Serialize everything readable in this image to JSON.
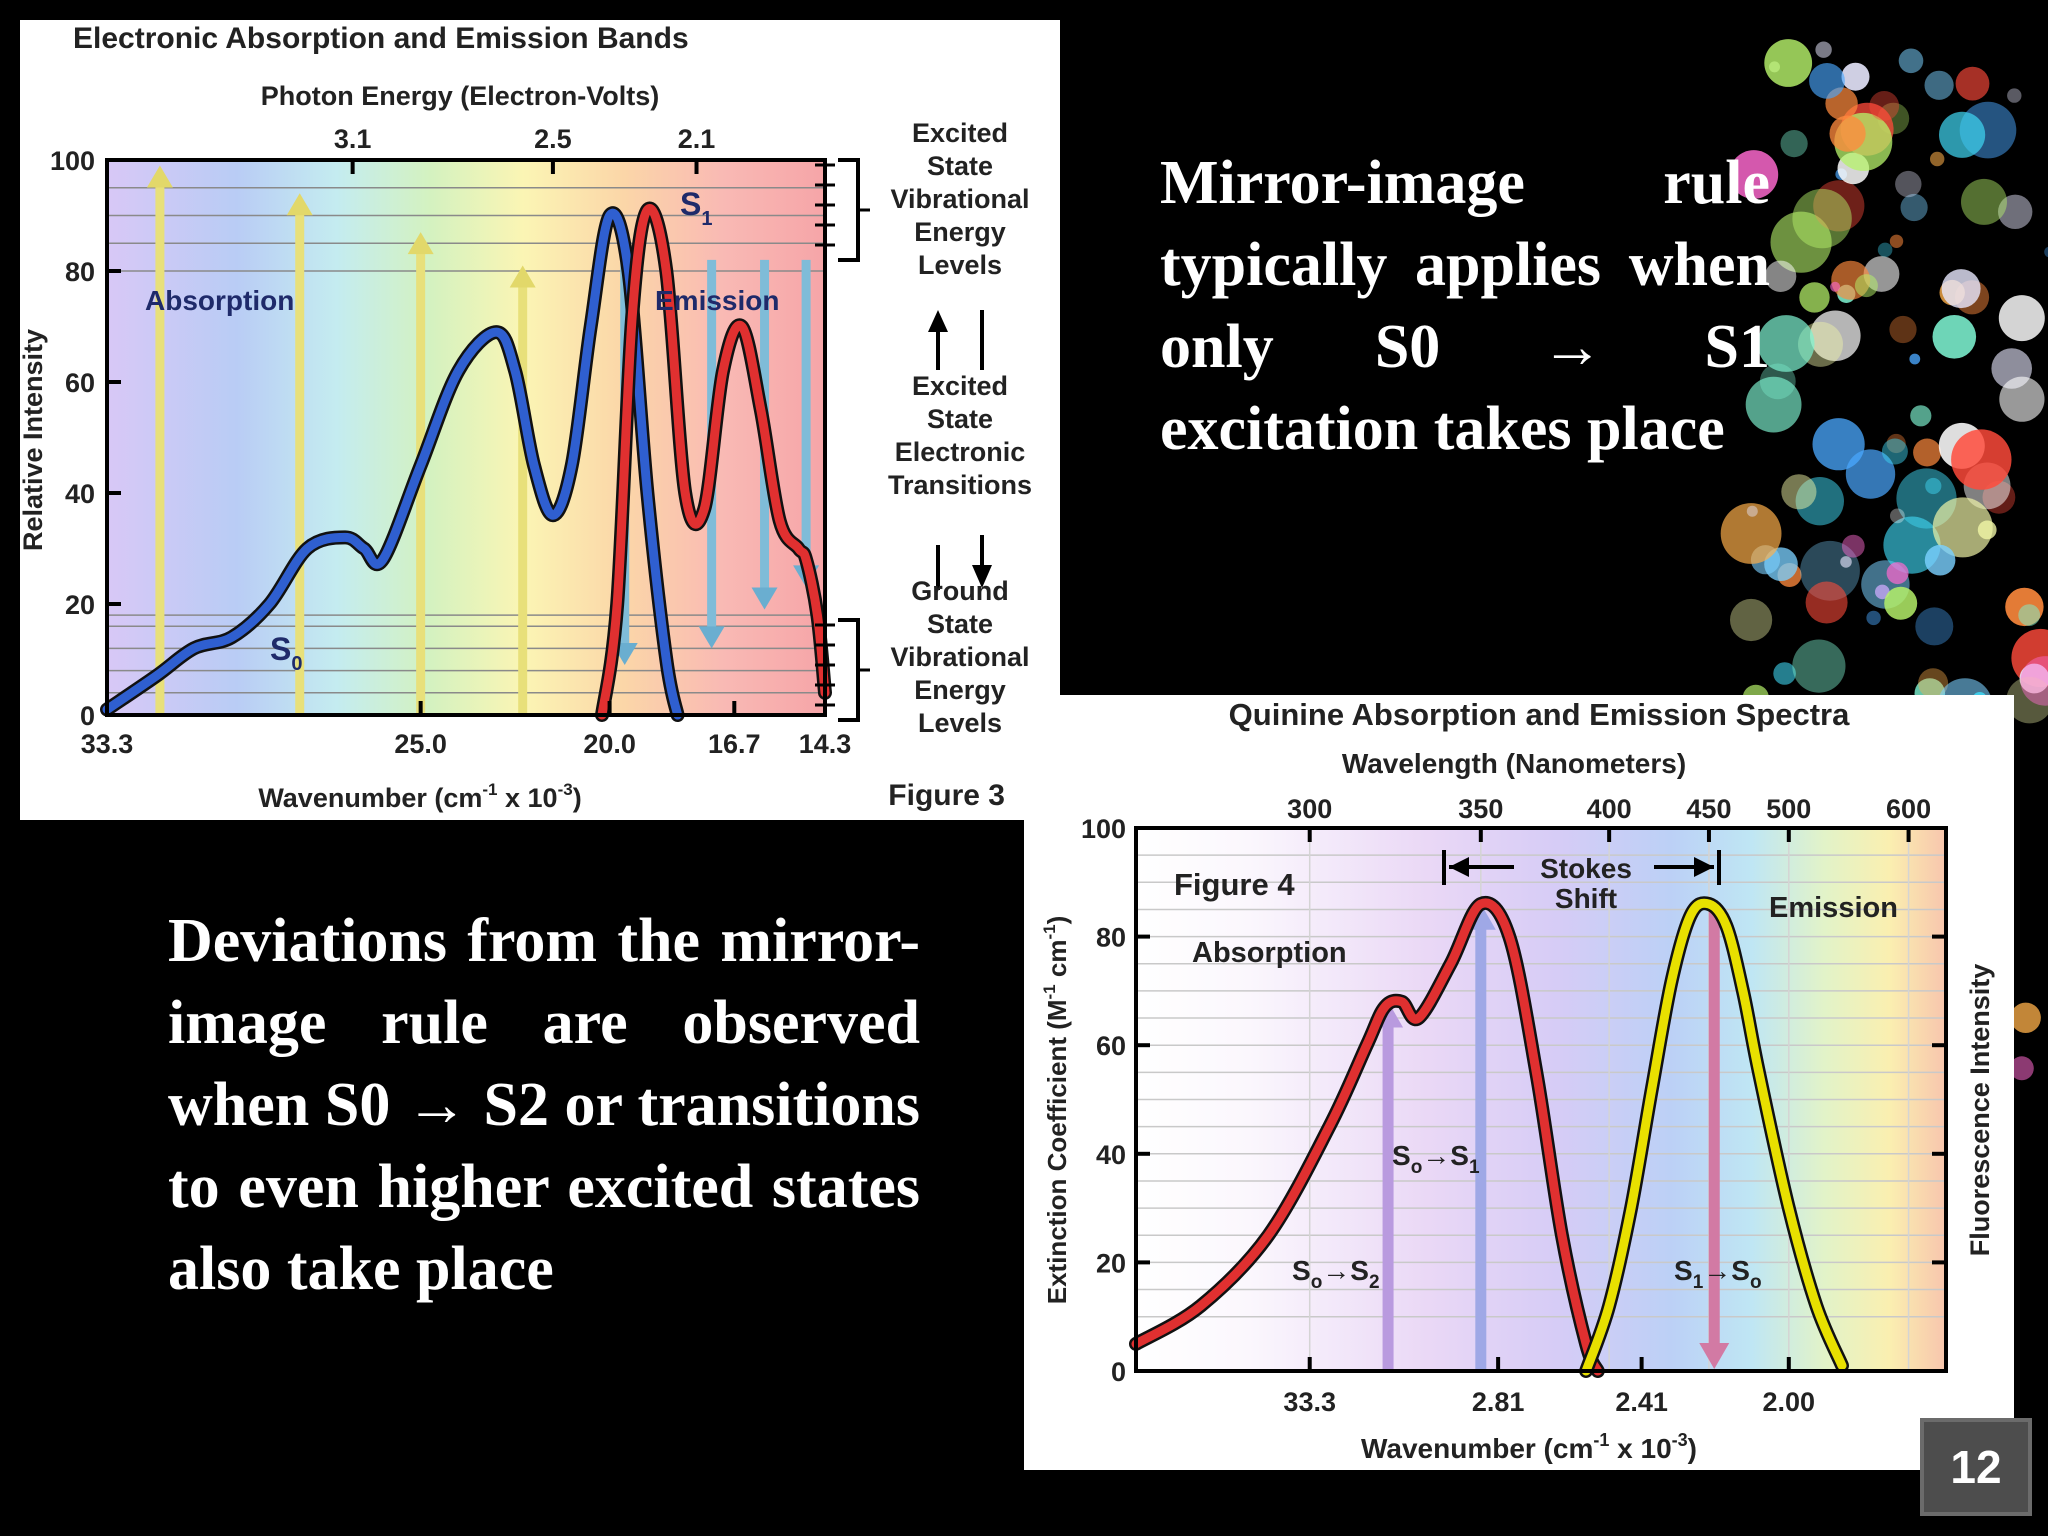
{
  "slide": {
    "text_right": "Mirror-image rule typically applies when only S0 → S1 excitation takes place",
    "text_left": "Deviations from the mirror-image rule are observed when S0 → S2 or transitions to even higher excited states also take place",
    "page_number": "12"
  },
  "chart_data": [
    {
      "type": "line",
      "title": "Electronic Absorption and Emission Bands",
      "top_axis_label": "Photon Energy (Electron-Volts)",
      "top_ticks": [
        "3.1",
        "2.5",
        "2.1"
      ],
      "xlabel": "Wavenumber (cm-1 x 10-3)",
      "xlabel_parts": {
        "a": "Wavenumber (cm",
        "sup1": "-1",
        "b": " x 10",
        "sup2": "-3",
        "c": ")"
      },
      "x_ticks": [
        "33.3",
        "25.0",
        "20.0",
        "16.7",
        "14.3"
      ],
      "ylabel": "Relative Intensity",
      "y_ticks": [
        "0",
        "20",
        "40",
        "60",
        "80",
        "100"
      ],
      "ylim": [
        0,
        100
      ],
      "xlim": [
        33.3,
        14.3
      ],
      "series": [
        {
          "name": "Absorption",
          "color": "#2f5fd0",
          "x": [
            33.3,
            32.0,
            31.0,
            30.0,
            29.0,
            28.0,
            27.0,
            26.5,
            26.0,
            25.0,
            24.0,
            23.0,
            22.5,
            22.0,
            21.5,
            21.0,
            20.5,
            20.0,
            19.5,
            19.0,
            18.5,
            18.2
          ],
          "y": [
            1,
            7,
            12,
            14,
            20,
            30,
            32,
            30,
            28,
            45,
            62,
            69,
            62,
            45,
            36,
            45,
            70,
            90,
            80,
            40,
            10,
            0
          ]
        },
        {
          "name": "Emission",
          "color": "#e03030",
          "x": [
            20.2,
            19.8,
            19.4,
            19.0,
            18.5,
            18.0,
            17.5,
            17.0,
            16.5,
            16.0,
            15.5,
            15.0,
            14.8,
            14.5,
            14.3
          ],
          "y": [
            0,
            20,
            72,
            91,
            80,
            40,
            37,
            62,
            70,
            55,
            35,
            30,
            28,
            18,
            4
          ]
        }
      ],
      "labels": {
        "absorption": "Absorption",
        "emission": "Emission",
        "s1": "S",
        "s1_sub": "1",
        "s0": "S",
        "s0_sub": "0",
        "figure": "Figure 3"
      },
      "side_labels": {
        "excited_vib": [
          "Excited",
          "State",
          "Vibrational",
          "Energy",
          "Levels"
        ],
        "excited_elec": [
          "Excited",
          "State",
          "Electronic",
          "Transitions"
        ],
        "ground_vib": [
          "Ground",
          "State",
          "Vibrational",
          "Energy",
          "Levels"
        ]
      },
      "grid": true,
      "legend": "none"
    },
    {
      "type": "line",
      "title": "Quinine Absorption and Emission Spectra",
      "top_axis_label": "Wavelength (Nanometers)",
      "top_ticks": [
        "300",
        "350",
        "400",
        "450",
        "500",
        "600"
      ],
      "xlabel": "Wavenumber (cm-1 x 10-3)",
      "xlabel_parts": {
        "a": "Wavenumber (cm",
        "sup1": "-1",
        "b": " x 10",
        "sup2": "-3",
        "c": ")"
      },
      "x_ticks": [
        "33.3",
        "2.81",
        "2.41",
        "2.00"
      ],
      "ylabel": "Extinction Coefficient (M-1 cm-1)",
      "ylabel_parts": {
        "a": "Extinction Coefficient (M",
        "sup1": "-1",
        "b": " cm",
        "sup2": "-1",
        "c": ")"
      },
      "y_ticks": [
        "0",
        "20",
        "40",
        "60",
        "80",
        "100"
      ],
      "ylim": [
        0,
        100
      ],
      "y2label": "Fluorescence Intensity",
      "series": [
        {
          "name": "Absorption",
          "color": "#e03030",
          "x": [
            262,
            275,
            290,
            305,
            315,
            320,
            325,
            330,
            340,
            350,
            360,
            370,
            380,
            390,
            395
          ],
          "y": [
            5,
            12,
            25,
            45,
            60,
            67,
            68,
            65,
            75,
            86,
            80,
            55,
            25,
            5,
            0
          ]
        },
        {
          "name": "Emission",
          "color": "#e8e000",
          "x": [
            390,
            400,
            410,
            420,
            430,
            440,
            450,
            460,
            470,
            480,
            500,
            520,
            540
          ],
          "y": [
            0,
            12,
            30,
            52,
            72,
            84,
            86,
            82,
            70,
            55,
            30,
            12,
            1
          ]
        }
      ],
      "labels": {
        "figure": "Figure 4",
        "absorption": "Absorption",
        "emission": "Emission",
        "stokes": [
          "Stokes",
          "Shift"
        ],
        "s0s2": {
          "a": "S",
          "sub1": "o",
          "b": "S",
          "sub2": "2"
        },
        "s0s1": {
          "a": "S",
          "sub1": "o",
          "b": "S",
          "sub2": "1"
        },
        "s1s0": {
          "a": "S",
          "sub1": "1",
          "b": "S",
          "sub2": "o"
        }
      },
      "grid": true,
      "legend": "none"
    }
  ]
}
